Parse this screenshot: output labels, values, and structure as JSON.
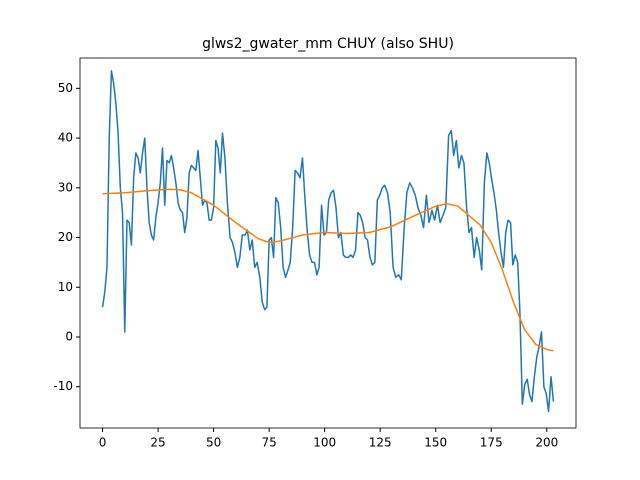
{
  "chart_data": {
    "type": "line",
    "title": "glws2_gwater_mm CHUY (also SHU)",
    "xlim": [
      -10.15,
      213.15
    ],
    "ylim": [
      -18.3,
      56.1
    ],
    "xticks": [
      0,
      25,
      50,
      75,
      100,
      125,
      150,
      175,
      200
    ],
    "yticks": [
      -10,
      0,
      10,
      20,
      30,
      40,
      50
    ],
    "series": [
      {
        "color": "#1f77b4",
        "x": [
          0,
          1,
          2,
          3,
          4,
          5,
          6,
          7,
          8,
          9,
          10,
          11,
          12,
          13,
          14,
          15,
          16,
          17,
          18,
          19,
          20,
          21,
          22,
          23,
          24,
          25,
          26,
          27,
          28,
          29,
          30,
          31,
          32,
          33,
          34,
          35,
          36,
          37,
          38,
          39,
          40,
          41,
          42,
          43,
          44,
          45,
          46,
          47,
          48,
          49,
          50,
          51,
          52,
          53,
          54,
          55.1,
          56.2,
          57.4,
          58.5,
          59.6,
          60.7,
          61.8,
          62.9,
          64.1,
          65.2,
          66.3,
          67.4,
          68.5,
          69.6,
          70.8,
          71.9,
          73,
          74,
          75,
          76,
          77,
          78,
          79.1,
          80.2,
          81.3,
          82.4,
          83.5,
          84.5,
          85.6,
          86.7,
          87.8,
          88.9,
          90,
          91.1,
          92.2,
          93.2,
          94.3,
          95.4,
          96.5,
          97.5,
          98.6,
          99.7,
          100.8,
          101.8,
          102.9,
          104,
          105.1,
          106.2,
          107.3,
          108.4,
          109.5,
          110.6,
          111.7,
          112.8,
          113.9,
          115,
          116,
          117.1,
          118.2,
          119.3,
          120.4,
          121.5,
          122.6,
          123.7,
          124.8,
          125.9,
          127,
          128.3,
          129.5,
          130.8,
          132,
          133.3,
          134.5,
          135.8,
          137,
          138.3,
          139.5,
          140.8,
          142,
          143.3,
          144.5,
          145.8,
          147,
          148.3,
          149.5,
          150.8,
          152,
          153.3,
          154.5,
          155.8,
          157,
          158.1,
          159.3,
          160.4,
          161.6,
          162.7,
          163.9,
          165,
          166.1,
          167.3,
          168.4,
          169.6,
          170.7,
          171.9,
          173,
          174.1,
          175.1,
          176.2,
          177.3,
          178.3,
          179.4,
          180.5,
          181.5,
          182.6,
          183.7,
          184.7,
          185.8,
          186.9,
          187.9,
          189,
          190.1,
          191.2,
          192.2,
          193.3,
          194.4,
          195.5,
          196.5,
          197.6,
          198.7,
          199.8,
          200.8,
          201.9,
          203
        ],
        "values": [
          6,
          9,
          14,
          40,
          53.5,
          51,
          47,
          41,
          30,
          25,
          1,
          23.5,
          23,
          18.5,
          32,
          37,
          36,
          33,
          37,
          40,
          30,
          23,
          20.5,
          19.5,
          24,
          27,
          31,
          38,
          26.5,
          35.5,
          35,
          36.5,
          34,
          31,
          27,
          25.5,
          25,
          21,
          24,
          33,
          34.5,
          34,
          33.5,
          37.5,
          32,
          26.5,
          27.5,
          27,
          23.5,
          23.5,
          26,
          39.5,
          38,
          33,
          41,
          36,
          27,
          20,
          19,
          17,
          14,
          16,
          20.5,
          20.5,
          21.5,
          17.5,
          19.5,
          14,
          15,
          12,
          7,
          5.5,
          6,
          19.5,
          20,
          16,
          28,
          27,
          22,
          14,
          12,
          13.5,
          15,
          22,
          33.5,
          33,
          32,
          36,
          28,
          21,
          16.5,
          15,
          15,
          12.5,
          14,
          26.5,
          20.5,
          21,
          27.5,
          29,
          29.5,
          26,
          20,
          21,
          16.5,
          16,
          16,
          16.5,
          16,
          17.5,
          25,
          24.5,
          23,
          20,
          19.5,
          16,
          14.5,
          15,
          27.5,
          28.5,
          30,
          30.5,
          29,
          25,
          14,
          12,
          12.5,
          11.5,
          22,
          29,
          31,
          30,
          28.5,
          26,
          24.5,
          22,
          28.5,
          23,
          25.5,
          23.5,
          26.5,
          23,
          24.5,
          26,
          40.5,
          41.5,
          36.5,
          39.5,
          34,
          36.5,
          35,
          26,
          21,
          22,
          16,
          20,
          17.5,
          13.5,
          31,
          37,
          35,
          32,
          29,
          25.5,
          21,
          17,
          14,
          21,
          23.5,
          23,
          14.5,
          16.5,
          15,
          5,
          -13.5,
          -9.5,
          -8.5,
          -11.5,
          -13,
          -8,
          -4,
          -2,
          1,
          -10,
          -11.5,
          -15,
          -8,
          -13
        ]
      },
      {
        "color": "#ff7f0e",
        "x": [
          0,
          10,
          20,
          30,
          35,
          40,
          50,
          60,
          70,
          75,
          80,
          90,
          100,
          110,
          120,
          130,
          140,
          150,
          155,
          160,
          170,
          175,
          180,
          185,
          190,
          195,
          200,
          203
        ],
        "values": [
          28.8,
          29,
          29.4,
          29.7,
          29.6,
          29,
          26.5,
          23,
          19.8,
          19,
          19.3,
          20.5,
          21,
          20.8,
          21,
          22.2,
          24.3,
          26.3,
          26.8,
          26.3,
          22.5,
          19,
          13.5,
          7,
          1.5,
          -1.5,
          -2.5,
          -2.8
        ]
      }
    ]
  }
}
